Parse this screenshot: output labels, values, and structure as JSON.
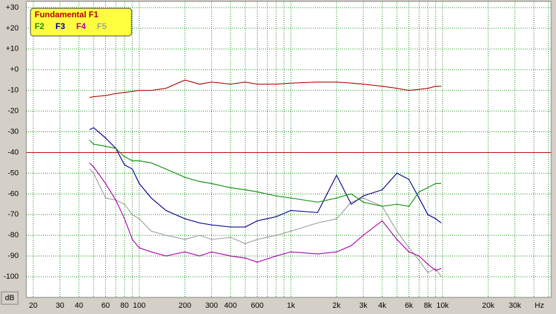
{
  "chart_data": {
    "type": "line",
    "x_unit": "Hz",
    "y_unit": "dB",
    "log_x": true,
    "grid": true,
    "grid_color": "#008000",
    "xlim": [
      18,
      52000
    ],
    "ylim": [
      -110,
      33
    ],
    "xticks": [
      20,
      30,
      40,
      60,
      80,
      100,
      200,
      300,
      400,
      600,
      {
        "value": 1000,
        "label": "1k"
      },
      {
        "value": 2000,
        "label": "2k"
      },
      {
        "value": 3000,
        "label": "3k"
      },
      {
        "value": 4000,
        "label": "4k"
      },
      {
        "value": 6000,
        "label": "6k"
      },
      {
        "value": 8000,
        "label": "8k"
      },
      {
        "value": 10000,
        "label": "10k"
      },
      {
        "value": 20000,
        "label": "20k"
      },
      {
        "value": 30000,
        "label": "30k"
      }
    ],
    "xgrid_minor": [
      50,
      70,
      90,
      500,
      700,
      800,
      900,
      5000,
      7000,
      9000,
      40000,
      50000
    ],
    "yticks": [
      {
        "value": 30,
        "label": "+30"
      },
      {
        "value": 20,
        "label": "+20"
      },
      {
        "value": 10,
        "label": "+10"
      },
      {
        "value": 0,
        "label": "+0"
      },
      -10,
      -20,
      -30,
      -40,
      -50,
      -60,
      -70,
      -80,
      -90,
      -100
    ],
    "hline": {
      "value": -40,
      "color": "#c00000"
    },
    "x": [
      47,
      50,
      60,
      70,
      80,
      90,
      100,
      120,
      150,
      200,
      250,
      300,
      400,
      500,
      600,
      800,
      1000,
      1500,
      2000,
      2500,
      3000,
      4000,
      5000,
      6000,
      7000,
      8000,
      9000,
      9800
    ],
    "series": [
      {
        "name": "Fundamental F1",
        "color": "#b00000",
        "values": [
          -13.5,
          -13,
          -12.5,
          -11.5,
          -11,
          -10.5,
          -10,
          -10,
          -9,
          -5,
          -7,
          -6,
          -7,
          -6,
          -7,
          -7,
          -6.5,
          -6,
          -6,
          -6.5,
          -7,
          -8,
          -9,
          -10,
          -9.5,
          -9,
          -8,
          -8
        ]
      },
      {
        "name": "F2",
        "color": "#109010",
        "values": [
          -34,
          -36,
          -37,
          -38,
          -42,
          -44,
          -44,
          -45,
          -48,
          -52,
          -54,
          -55,
          -57,
          -58,
          -59,
          -61,
          -62,
          -64,
          -62,
          -60,
          -64,
          -66,
          -65,
          -66,
          -59,
          -57,
          -55,
          -55
        ]
      },
      {
        "name": "F3",
        "color": "#000090",
        "values": [
          -29,
          -28,
          -33,
          -38,
          -46,
          -48,
          -55,
          -62,
          -68,
          -72,
          -74,
          -75,
          -76,
          -76,
          -73,
          -71,
          -68,
          -69,
          -51,
          -65,
          -61,
          -58,
          -50,
          -53,
          -62,
          -70,
          -72,
          -74
        ]
      },
      {
        "name": "F4",
        "color": "#b000b0",
        "values": [
          -45,
          -47,
          -55,
          -63,
          -72,
          -82,
          -86,
          -88,
          -90,
          -88,
          -90,
          -88,
          -90,
          -91,
          -93,
          -90,
          -88,
          -89,
          -88,
          -85,
          -80,
          -73,
          -82,
          -88,
          -90,
          -94,
          -97,
          -96
        ]
      },
      {
        "name": "F5",
        "color": "#a0a0a0",
        "values": [
          -48,
          -50,
          -62,
          -63,
          -65,
          -70,
          -72,
          -78,
          -80,
          -82,
          -80,
          -82,
          -81,
          -84,
          -82,
          -80,
          -78,
          -74,
          -72,
          -64,
          -62,
          -66,
          -78,
          -86,
          -92,
          -98,
          -96,
          -100
        ]
      }
    ]
  }
}
